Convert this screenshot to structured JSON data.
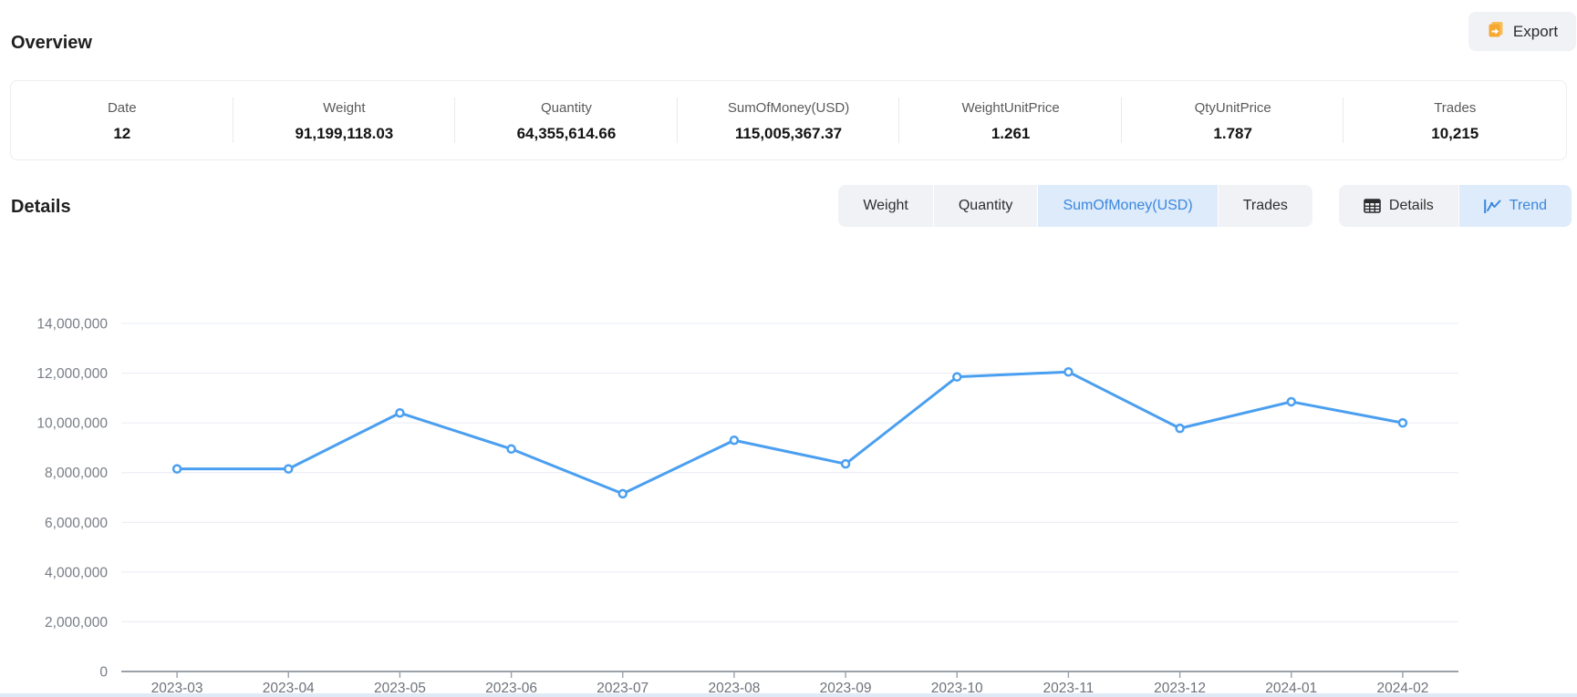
{
  "overview": {
    "title": "Overview",
    "export_label": "Export",
    "stats": [
      {
        "label": "Date",
        "value": "12"
      },
      {
        "label": "Weight",
        "value": "91,199,118.03"
      },
      {
        "label": "Quantity",
        "value": "64,355,614.66"
      },
      {
        "label": "SumOfMoney(USD)",
        "value": "115,005,367.37"
      },
      {
        "label": "WeightUnitPrice",
        "value": "1.261"
      },
      {
        "label": "QtyUnitPrice",
        "value": "1.787"
      },
      {
        "label": "Trades",
        "value": "10,215"
      }
    ]
  },
  "details": {
    "title": "Details",
    "metric_tabs": [
      {
        "label": "Weight",
        "active": false
      },
      {
        "label": "Quantity",
        "active": false
      },
      {
        "label": "SumOfMoney(USD)",
        "active": true
      },
      {
        "label": "Trades",
        "active": false
      }
    ],
    "view_tabs": [
      {
        "label": "Details",
        "icon": "table-icon",
        "active": false
      },
      {
        "label": "Trend",
        "icon": "trend-icon",
        "active": true
      }
    ]
  },
  "colors": {
    "accent_blue": "#3c87de",
    "tab_active_bg": "#ddebfa",
    "tab_bg": "#f1f2f6",
    "export_icon_orange": "#f6a832",
    "chart_line": "#4a9ff0",
    "gridline": "#e9ecf4",
    "axis_line": "#9ba1a9",
    "axis_label": "#6e737b"
  },
  "chart_data": {
    "type": "line",
    "title": "",
    "xlabel": "",
    "ylabel": "",
    "categories": [
      "2023-03",
      "2023-04",
      "2023-05",
      "2023-06",
      "2023-07",
      "2023-08",
      "2023-09",
      "2023-10",
      "2023-11",
      "2023-12",
      "2024-01",
      "2024-02"
    ],
    "series": [
      {
        "name": "SumOfMoney(USD)",
        "values": [
          8150000,
          8150000,
          10400000,
          8950000,
          7150000,
          9300000,
          8350000,
          11850000,
          12050000,
          9780000,
          10850000,
          10000000
        ]
      }
    ],
    "ylim": [
      0,
      14000000
    ],
    "ytick_step": 2000000,
    "grid": true,
    "legend": "none",
    "marker": "hollow-circle"
  }
}
